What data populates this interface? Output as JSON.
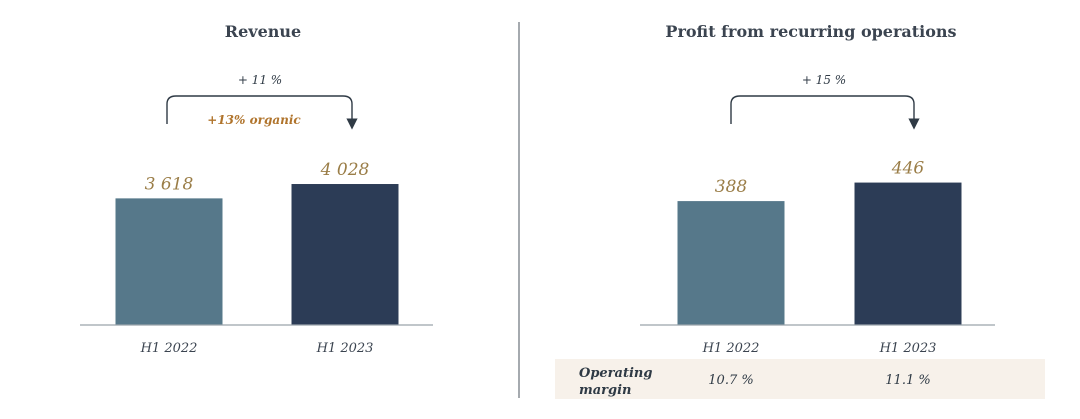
{
  "chart_data": [
    {
      "type": "bar",
      "title": "Revenue",
      "categories": [
        "H1 2022",
        "H1 2023"
      ],
      "values": [
        3618,
        4028
      ],
      "value_labels": [
        "3 618",
        "4 028"
      ],
      "ylim": [
        0,
        5000
      ],
      "growth_label": "+ 11 %",
      "organic_label": "+13% organic",
      "colors": [
        "#56788a",
        "#2c3c56"
      ]
    },
    {
      "type": "bar",
      "title": "Profit from recurring operations",
      "categories": [
        "H1 2022",
        "H1 2023"
      ],
      "values": [
        388,
        446
      ],
      "value_labels": [
        "388",
        "446"
      ],
      "ylim": [
        0,
        548
      ],
      "growth_label": "+ 15 %",
      "colors": [
        "#56788a",
        "#2c3c56"
      ],
      "margin_row": {
        "label_line1": "Operating",
        "label_line2": "margin",
        "values": [
          "10.7 %",
          "11.1 %"
        ]
      }
    }
  ],
  "colors": {
    "value_text": "#9a7d47",
    "organic_text": "#b0742c",
    "axis": "#9aa3ab",
    "divider": "#6a727a",
    "margin_band": "#f7f1ea"
  }
}
